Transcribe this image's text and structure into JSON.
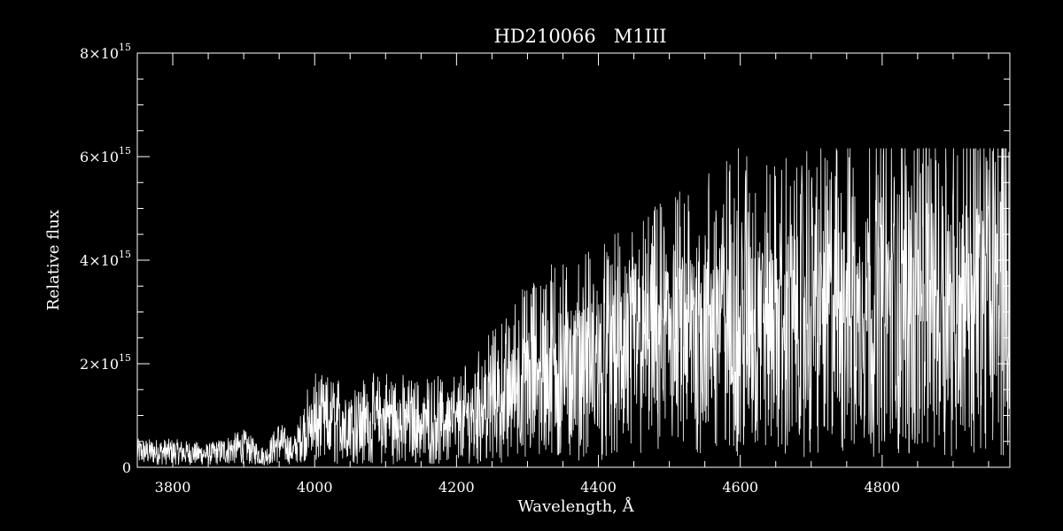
{
  "chart_data": {
    "type": "line",
    "title": "HD210066   M1III",
    "xlabel": "Wavelength, Å",
    "ylabel": "Relative flux",
    "xlim": [
      3750,
      4980
    ],
    "ylim": [
      0,
      8000000000000000.0
    ],
    "x_ticks": [
      {
        "value": 3800,
        "label": "3800"
      },
      {
        "value": 4000,
        "label": "4000"
      },
      {
        "value": 4200,
        "label": "4200"
      },
      {
        "value": 4400,
        "label": "4400"
      },
      {
        "value": 4600,
        "label": "4600"
      },
      {
        "value": 4800,
        "label": "4800"
      }
    ],
    "y_ticks": [
      {
        "value": 0,
        "mantissa": "0",
        "exponent": ""
      },
      {
        "value": 2000000000000000.0,
        "mantissa": "2×10",
        "exponent": "15"
      },
      {
        "value": 4000000000000000.0,
        "mantissa": "4×10",
        "exponent": "15"
      },
      {
        "value": 6000000000000000.0,
        "mantissa": "6×10",
        "exponent": "15"
      },
      {
        "value": 8000000000000000.0,
        "mantissa": "8×10",
        "exponent": "15"
      }
    ],
    "grid": false,
    "series": [
      {
        "color": "#ffffff",
        "envelope": {
          "x": [
            3750,
            3800,
            3850,
            3900,
            3930,
            3950,
            3970,
            4000,
            4050,
            4100,
            4150,
            4200,
            4250,
            4300,
            4350,
            4400,
            4450,
            4500,
            4550,
            4600,
            4650,
            4700,
            4750,
            4800,
            4850,
            4900,
            4950,
            4980
          ],
          "y": [
            300000000000000.0,
            300000000000000.0,
            250000000000000.0,
            400000000000000.0,
            200000000000000.0,
            500000000000000.0,
            300000000000000.0,
            1100000000000000.0,
            1050000000000000.0,
            1150000000000000.0,
            1050000000000000.0,
            1100000000000000.0,
            1600000000000000.0,
            2200000000000000.0,
            2500000000000000.0,
            2600000000000000.0,
            2900000000000000.0,
            3200000000000000.0,
            3500000000000000.0,
            3800000000000000.0,
            3600000000000000.0,
            3800000000000000.0,
            3900000000000000.0,
            4000000000000000.0,
            4100000000000000.0,
            4200000000000000.0,
            4300000000000000.0,
            4600000000000000.0
          ]
        }
      }
    ]
  }
}
